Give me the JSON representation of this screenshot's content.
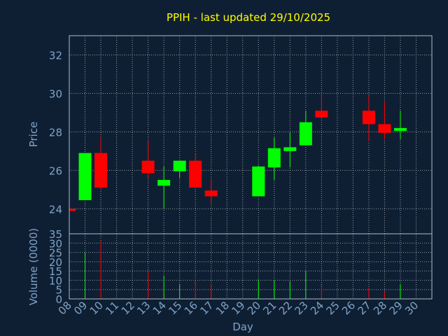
{
  "chart_data": [
    {
      "type": "candlestick",
      "title": "PPIH - last updated 29/10/2025",
      "ylabel": "Price",
      "ylim": [
        22.7,
        33
      ],
      "yticks": [
        24,
        26,
        28,
        30,
        32
      ],
      "grid": true,
      "candles": [
        {
          "day": "08",
          "open": 24.0,
          "high": 24.0,
          "low": 24.0,
          "close": 24.0,
          "direction": "down"
        },
        {
          "day": "09",
          "open": 24.45,
          "high": 26.9,
          "low": 24.45,
          "close": 26.9,
          "direction": "up"
        },
        {
          "day": "10",
          "open": 26.9,
          "high": 27.75,
          "low": 25.0,
          "close": 25.1,
          "direction": "down"
        },
        {
          "day": "13",
          "open": 26.5,
          "high": 27.5,
          "low": 25.6,
          "close": 25.85,
          "direction": "down"
        },
        {
          "day": "14",
          "open": 25.2,
          "high": 26.2,
          "low": 24.0,
          "close": 25.5,
          "direction": "up"
        },
        {
          "day": "15",
          "open": 25.95,
          "high": 26.5,
          "low": 25.6,
          "close": 26.5,
          "direction": "up"
        },
        {
          "day": "16",
          "open": 26.5,
          "high": 26.85,
          "low": 25.1,
          "close": 25.1,
          "direction": "down"
        },
        {
          "day": "17",
          "open": 24.95,
          "high": 25.5,
          "low": 24.3,
          "close": 24.65,
          "direction": "down"
        },
        {
          "day": "20",
          "open": 24.65,
          "high": 26.25,
          "low": 24.65,
          "close": 26.2,
          "direction": "up"
        },
        {
          "day": "21",
          "open": 26.15,
          "high": 27.7,
          "low": 25.5,
          "close": 27.15,
          "direction": "up"
        },
        {
          "day": "22",
          "open": 27.0,
          "high": 27.95,
          "low": 26.15,
          "close": 27.2,
          "direction": "up"
        },
        {
          "day": "23",
          "open": 27.3,
          "high": 29.1,
          "low": 27.3,
          "close": 28.5,
          "direction": "up"
        },
        {
          "day": "24",
          "open": 29.1,
          "high": 30.0,
          "low": 28.75,
          "close": 28.75,
          "direction": "down"
        },
        {
          "day": "27",
          "open": 29.1,
          "high": 29.9,
          "low": 27.5,
          "close": 28.4,
          "direction": "down"
        },
        {
          "day": "28",
          "open": 28.4,
          "high": 29.55,
          "low": 27.6,
          "close": 27.95,
          "direction": "down"
        },
        {
          "day": "29",
          "open": 28.05,
          "high": 29.1,
          "low": 27.6,
          "close": 28.2,
          "direction": "up"
        }
      ]
    },
    {
      "type": "bar",
      "ylabel": "Volume (0000)",
      "xlabel": "Day",
      "ylim": [
        0,
        35
      ],
      "yticks": [
        0,
        5,
        10,
        15,
        20,
        25,
        30,
        35
      ],
      "grid": true,
      "categories": [
        "08",
        "09",
        "10",
        "11",
        "12",
        "13",
        "14",
        "15",
        "16",
        "17",
        "18",
        "19",
        "20",
        "21",
        "22",
        "23",
        "24",
        "25",
        "26",
        "27",
        "28",
        "29",
        "30"
      ],
      "volumes": [
        {
          "day": "09",
          "value": 25,
          "direction": "up"
        },
        {
          "day": "10",
          "value": 31,
          "direction": "down"
        },
        {
          "day": "13",
          "value": 15,
          "direction": "down"
        },
        {
          "day": "14",
          "value": 12.5,
          "direction": "up"
        },
        {
          "day": "15",
          "value": 8,
          "direction": "up"
        },
        {
          "day": "16",
          "value": 10,
          "direction": "down"
        },
        {
          "day": "17",
          "value": 8,
          "direction": "down"
        },
        {
          "day": "20",
          "value": 10.5,
          "direction": "up"
        },
        {
          "day": "21",
          "value": 10,
          "direction": "up"
        },
        {
          "day": "22",
          "value": 9.5,
          "direction": "up"
        },
        {
          "day": "23",
          "value": 15,
          "direction": "up"
        },
        {
          "day": "24",
          "value": 7.5,
          "direction": "down"
        },
        {
          "day": "27",
          "value": 6,
          "direction": "down"
        },
        {
          "day": "28",
          "value": 4,
          "direction": "down"
        },
        {
          "day": "29",
          "value": 8,
          "direction": "up"
        }
      ]
    }
  ],
  "colors": {
    "background": "#0f1f33",
    "plot_border": "#b0b8c4",
    "grid": "#c8ccd2",
    "title": "#ffff00",
    "axis_text": "#7fa4c8",
    "up": "#00ff00",
    "down": "#ff0000"
  }
}
